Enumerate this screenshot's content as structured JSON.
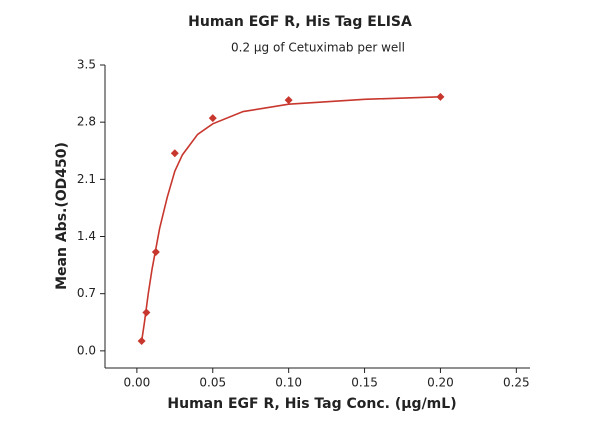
{
  "chart_data": {
    "type": "scatter",
    "title": "Human EGF R, His Tag ELISA",
    "subtitle": "0.2 μg of Cetuximab per well",
    "xlabel": "Human EGF R, His Tag Conc. (μg/mL)",
    "ylabel": "Mean Abs.(OD450)",
    "x": [
      0.003125,
      0.00625,
      0.0125,
      0.025,
      0.05,
      0.1,
      0.2
    ],
    "values": [
      0.12,
      0.47,
      1.21,
      2.42,
      2.85,
      3.07,
      3.11
    ],
    "color": "#c8372d",
    "fit_curve": {
      "x": [
        0.003,
        0.005,
        0.0075,
        0.01,
        0.0125,
        0.015,
        0.02,
        0.025,
        0.03,
        0.04,
        0.05,
        0.07,
        0.1,
        0.15,
        0.2
      ],
      "values": [
        0.1,
        0.35,
        0.7,
        1.0,
        1.25,
        1.5,
        1.88,
        2.2,
        2.4,
        2.65,
        2.78,
        2.93,
        3.02,
        3.08,
        3.11
      ],
      "color": "#c8372d"
    },
    "xlim": [
      -0.021,
      0.259
    ],
    "ylim": [
      -0.21,
      3.5
    ],
    "xticks": [
      {
        "value": 0,
        "label": "0.00"
      },
      {
        "value": 0.05,
        "label": "0.05"
      },
      {
        "value": 0.1,
        "label": "0.10"
      },
      {
        "value": 0.15,
        "label": "0.15"
      },
      {
        "value": 0.2,
        "label": "0.20"
      },
      {
        "value": 0.25,
        "label": "0.25"
      }
    ],
    "yticks": [
      {
        "value": 0,
        "label": "0.0"
      },
      0.7,
      1.4,
      2.1,
      2.8,
      3.5
    ]
  }
}
